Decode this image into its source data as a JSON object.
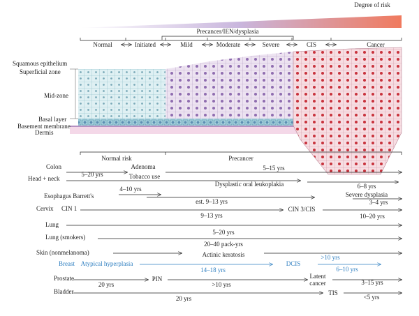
{
  "header": {
    "degree_of_risk": "Degree of risk",
    "stage_group": "Precancer/IEN/dysplasia",
    "stages": [
      "Normal",
      "Initiated",
      "Mild",
      "Moderate",
      "Severe",
      "CIS",
      "Cancer"
    ]
  },
  "tissue_labels": [
    "Squamous epithelium",
    "Superficial zone",
    "Mid-zone",
    "Basal layer",
    "Basement membrane",
    "Dermis"
  ],
  "risk_labels": [
    "Normal risk",
    "Precancer"
  ],
  "rows": [
    [
      "Colon",
      "5–20 yrs",
      "Adenoma",
      "5–15 yrs"
    ],
    [
      "Head + neck",
      "Tobacco use",
      "Dysplastic oral leukoplakia",
      "6–8 yrs"
    ],
    [
      "Esophagus Barrett's",
      "4–10 yrs",
      "est. 9–13 yrs",
      "Severe dysplasia",
      "3–4 yrs"
    ],
    [
      "Cervix",
      "CIN 1",
      "9–13 yrs",
      "CIN 3/CIS",
      "10–20 yrs"
    ],
    [
      "Lung"
    ],
    [
      "Lung (smokers)",
      "5–20 yrs",
      "20–40 pack-yrs"
    ],
    [
      "Skin (nonmelanoma)",
      "Actinic keratosis"
    ],
    [
      "Breast",
      "Atypical hyperplasia",
      "14–18 yrs",
      "DCIS",
      ">10 yrs",
      "6–10 yrs"
    ],
    [
      "Prostate",
      "20 yrs",
      "PIN",
      ">10 yrs",
      "Latent",
      "cancer",
      "3–15 yrs"
    ],
    [
      "Bladder",
      "20 yrs",
      "TIS",
      "<5 yrs"
    ]
  ]
}
